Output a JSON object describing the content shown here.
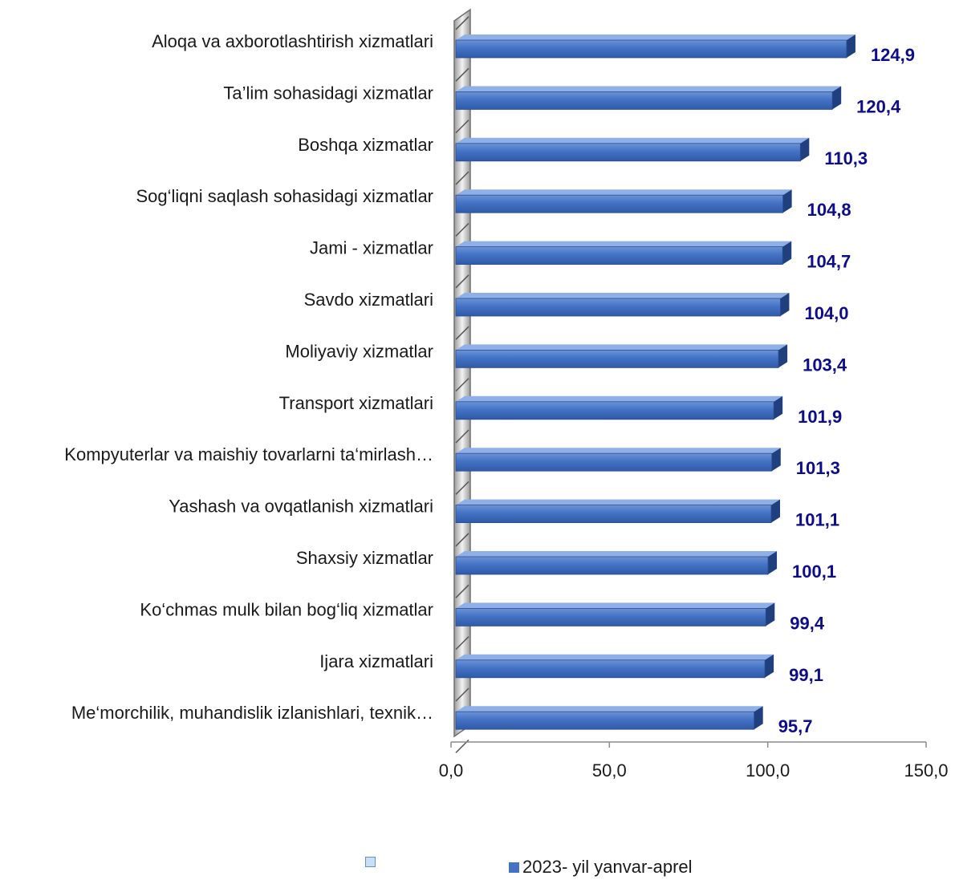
{
  "chart_data": {
    "type": "bar",
    "orientation": "horizontal",
    "categories": [
      "Aloqa va axborotlashtirish xizmatlari",
      "Ta’lim sohasidagi xizmatlar",
      "Boshqa xizmatlar",
      "Sog‘liqni saqlash sohasidagi xizmatlar",
      "Jami - xizmatlar",
      "Savdo xizmatlari",
      "Moliyaviy  xizmatlar",
      "Transport xizmatlari",
      "Kompyuterlar va maishiy tovarlarni ta‘mirlash…",
      "Yashash va ovqatlanish xizmatlari",
      "Shaxsiy xizmatlar",
      "Ko‘chmas mulk bilan bog‘liq xizmatlar",
      "Ijara xizmatlari",
      "Me‘morchilik, muhandislik izlanishlari, texnik…"
    ],
    "series": [
      {
        "name": "2023- yil yanvar-aprel",
        "values": [
          124.9,
          120.4,
          110.3,
          104.8,
          104.7,
          104.0,
          103.4,
          101.9,
          101.3,
          101.1,
          100.1,
          99.4,
          99.1,
          95.7
        ],
        "data_labels": [
          "124,9",
          "120,4",
          "110,3",
          "104,8",
          "104,7",
          "104,0",
          "103,4",
          "101,9",
          "101,3",
          "101,1",
          "100,1",
          "99,4",
          "99,1",
          "95,7"
        ]
      }
    ],
    "xlim": [
      0,
      150
    ],
    "x_ticks": [
      0,
      50,
      100,
      150
    ],
    "x_tick_labels": [
      "0,0",
      "50,0",
      "100,0",
      "150,0"
    ],
    "grid": false,
    "legend_position": "bottom",
    "legend": [
      {
        "name": "",
        "color": "#c6e0f5"
      },
      {
        "name": "2023- yil yanvar-aprel",
        "color": "#4472c4"
      }
    ],
    "colors": {
      "bar": "#4472c4",
      "bar_dark": "#1f3f7f",
      "value_label": "#0d0d8c"
    }
  }
}
